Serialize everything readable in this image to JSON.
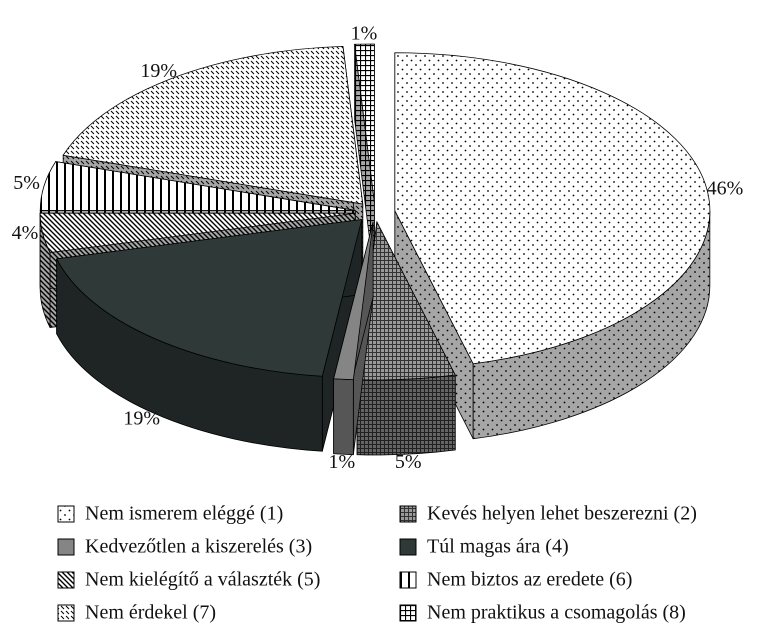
{
  "chart_data": {
    "type": "pie",
    "categories": [
      "Nem ismerem eléggé (1)",
      "Kevés helyen lehet beszerezni (2)",
      "Kedvezőtlen a kiszerelés (3)",
      "Túl magas ára (4)",
      "Nem kielégítő a választék (5)",
      "Nem biztos az eredete (6)",
      "Nem érdekel (7)",
      "Nem praktikus a csomagolás (8)"
    ],
    "values": [
      46,
      5,
      1,
      19,
      4,
      5,
      19,
      1
    ],
    "value_labels": [
      "46%",
      "5%",
      "1%",
      "19%",
      "4%",
      "5%",
      "19%",
      "1%"
    ],
    "colors": [
      "#ffffff",
      "#9a9a9a",
      "#858585",
      "#2f3a38",
      "#ffffff",
      "#ffffff",
      "#ffffff",
      "#ffffff"
    ]
  }
}
